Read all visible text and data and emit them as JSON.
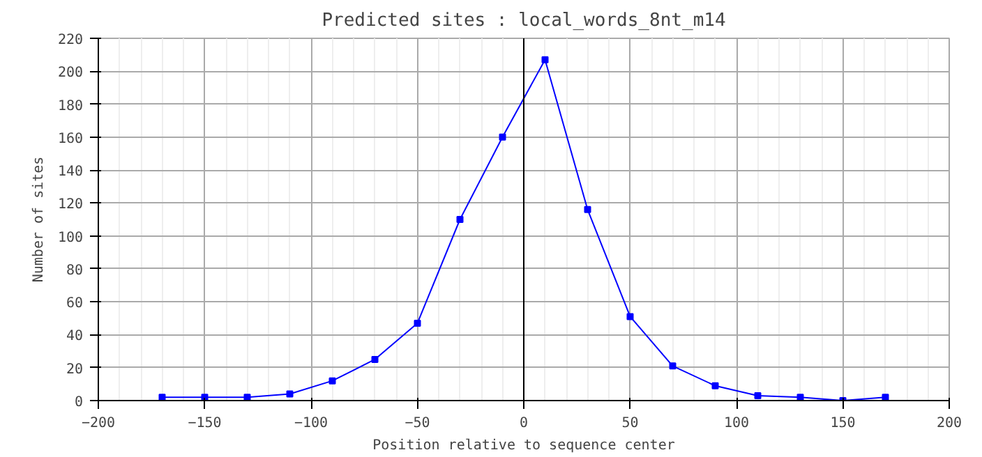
{
  "chart_data": {
    "type": "line",
    "title": "Predicted sites : local_words_8nt_m14",
    "xlabel": "Position relative to sequence center",
    "ylabel": "Number of sites",
    "x": [
      -170,
      -150,
      -130,
      -110,
      -90,
      -70,
      -50,
      -30,
      -10,
      10,
      30,
      50,
      70,
      90,
      110,
      130,
      150,
      170
    ],
    "series": [
      {
        "color": "#0000ff",
        "values": [
          2,
          2,
          2,
          4,
          12,
          25,
          47,
          110,
          160,
          207,
          116,
          51,
          21,
          9,
          3,
          2,
          0,
          2
        ]
      }
    ],
    "xlim": [
      -200,
      200
    ],
    "xticks": [
      -200,
      -150,
      -100,
      -50,
      0,
      50,
      100,
      150,
      200
    ],
    "ylim": [
      0,
      220
    ],
    "yticks": [
      0,
      20,
      40,
      60,
      80,
      100,
      120,
      140,
      160,
      180,
      200,
      220
    ],
    "ref_lines": [
      {
        "axis": "x",
        "value": 0,
        "color": "#000000"
      }
    ],
    "grid": true,
    "marker": "square",
    "line_style": "solid"
  }
}
